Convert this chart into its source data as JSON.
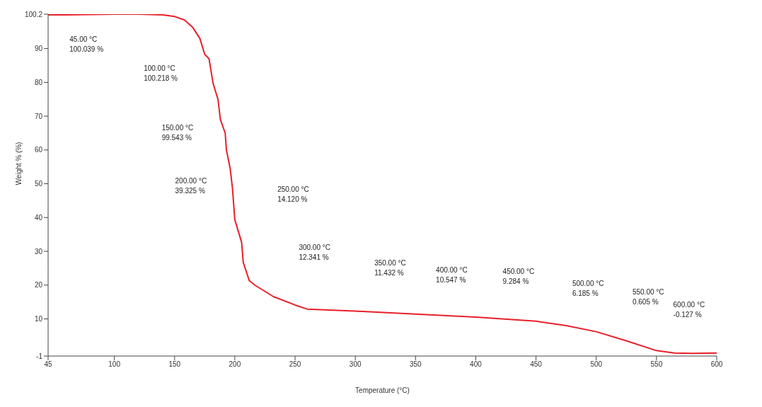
{
  "chart_data": {
    "type": "line",
    "xlabel": "Temperature (°C)",
    "ylabel": "Weight % (%)",
    "x": [
      45,
      60,
      80,
      100,
      120,
      140,
      150,
      158,
      165,
      171,
      175,
      178.6,
      182,
      186,
      188,
      192,
      193,
      196,
      198,
      200,
      205.6,
      207,
      212,
      217,
      232,
      250,
      260,
      300,
      350,
      400,
      450,
      475,
      500,
      525,
      550,
      565,
      580,
      600
    ],
    "series": [
      {
        "color": "#e8202a",
        "values": [
          100.0,
          100.0,
          100.1,
          100.2,
          100.2,
          100.0,
          99.5,
          98.5,
          96.3,
          93,
          88.3,
          87,
          79.6,
          75,
          69,
          65,
          60,
          54.8,
          48.8,
          39.3,
          32.7,
          26.7,
          21.3,
          19.9,
          16.6,
          14.1,
          12.9,
          12.3,
          11.4,
          10.5,
          9.3,
          8.0,
          6.2,
          3.5,
          0.6,
          -0.1,
          -0.2,
          -0.1
        ]
      }
    ],
    "xlim": [
      45,
      600
    ],
    "xticks": [
      45,
      100,
      150,
      200,
      250,
      300,
      350,
      400,
      450,
      500,
      550,
      600
    ],
    "ylim": [
      -1,
      100.2
    ],
    "yticks": [
      -1,
      10,
      20,
      30,
      40,
      50,
      60,
      70,
      80,
      90,
      100.2
    ],
    "grid": false,
    "legend": false,
    "marker": "none",
    "line_style": "solid",
    "annotations": [
      "45.00 °C\n100.039 %",
      "100.00 °C\n100.218 %",
      "150.00 °C\n99.543 %",
      "200.00 °C\n39.325 %",
      "250.00 °C\n14.120 %",
      "300.00 °C\n12.341 %",
      "350.00 °C\n11.432 %",
      "400.00 °C\n10.547 %",
      "450.00 °C\n9.284 %",
      "500.00 °C\n6.185 %",
      "550.00 °C\n0.605 %",
      "600.00 °C\n-0.127 %"
    ]
  }
}
